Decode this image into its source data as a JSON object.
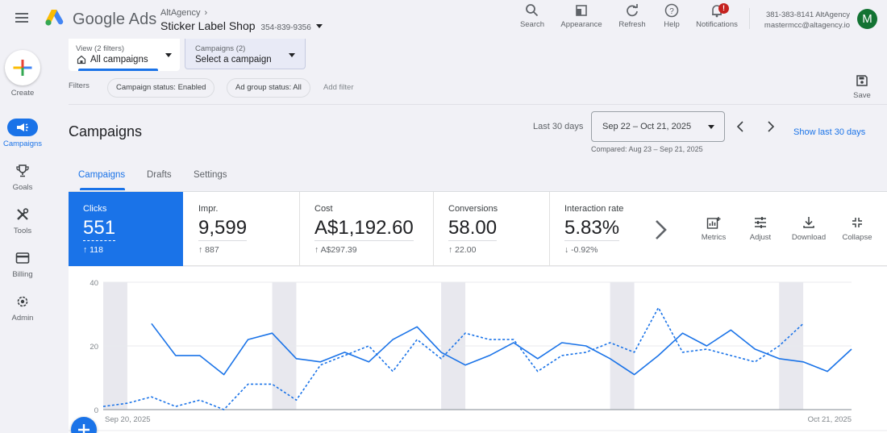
{
  "header": {
    "brand": "Google Ads",
    "account_parent": "AltAgency",
    "account_name": "Sticker Label Shop",
    "account_id": "354-839-9356",
    "tools": [
      {
        "label": "Search",
        "icon": "search-icon"
      },
      {
        "label": "Appearance",
        "icon": "appearance-icon"
      },
      {
        "label": "Refresh",
        "icon": "refresh-icon"
      },
      {
        "label": "Help",
        "icon": "help-icon"
      },
      {
        "label": "Notifications",
        "icon": "bell-icon",
        "badge": "!"
      }
    ],
    "user": {
      "line1": "381-383-8141 AltAgency",
      "line2": "mastermcc@altagency.io",
      "avatar_letter": "M",
      "avatar_color": "#137333"
    }
  },
  "sidebar": {
    "create_label": "Create",
    "items": [
      {
        "label": "Campaigns",
        "icon": "megaphone-icon",
        "active": true
      },
      {
        "label": "Goals",
        "icon": "trophy-icon"
      },
      {
        "label": "Tools",
        "icon": "tools-icon"
      },
      {
        "label": "Billing",
        "icon": "card-icon"
      },
      {
        "label": "Admin",
        "icon": "gear-icon"
      }
    ]
  },
  "filters": {
    "view_label": "View (2 filters)",
    "view_value": "All campaigns",
    "campaigns_label": "Campaigns (2)",
    "campaigns_value": "Select a campaign",
    "filters_label": "Filters",
    "chips": [
      "Campaign status: Enabled",
      "Ad group status: All"
    ],
    "add_filter": "Add filter",
    "save_label": "Save"
  },
  "page": {
    "title": "Campaigns",
    "range_label": "Last 30 days",
    "date_range": "Sep 22 – Oct 21, 2025",
    "compared": "Compared: Aug 23 – Sep 21, 2025",
    "show_last": "Show last 30 days",
    "tabs": [
      "Campaigns",
      "Drafts",
      "Settings"
    ],
    "active_tab": 0
  },
  "scorecards": [
    {
      "name": "Clicks",
      "value": "551",
      "delta": "↑ 118",
      "selected": true
    },
    {
      "name": "Impr.",
      "value": "9,599",
      "delta": "↑ 887"
    },
    {
      "name": "Cost",
      "value": "A$1,192.60",
      "delta": "↑ A$297.39"
    },
    {
      "name": "Conversions",
      "value": "58.00",
      "delta": "↑ 22.00"
    },
    {
      "name": "Interaction rate",
      "value": "5.83%",
      "delta": "↓ -0.92%"
    }
  ],
  "card_actions": [
    {
      "label": "Metrics",
      "icon": "metrics-icon"
    },
    {
      "label": "Adjust",
      "icon": "adjust-icon"
    },
    {
      "label": "Download",
      "icon": "download-icon"
    },
    {
      "label": "Collapse",
      "icon": "collapse-icon"
    }
  ],
  "colors": {
    "accent": "#1a73e8",
    "weekend_band": "#e8e8ee"
  },
  "chart_data": {
    "type": "line",
    "title": "",
    "xlabel": "",
    "ylabel": "Clicks",
    "ylim": [
      0,
      40
    ],
    "y_ticks": [
      0,
      20,
      40
    ],
    "x_tick_labels": [
      "Sep 20, 2025",
      "Oct 21, 2025"
    ],
    "grid": true,
    "x_days": 32,
    "weekend_band_days": [
      0,
      7,
      14,
      21,
      28
    ],
    "series": [
      {
        "name": "Clicks (Sep 22 – Oct 21, 2025)",
        "style": "solid",
        "start_day": 2,
        "values": [
          27,
          17,
          17,
          11,
          22,
          24,
          16,
          15,
          18,
          15,
          22,
          26,
          18,
          14,
          17,
          21,
          16,
          21,
          20,
          16,
          11,
          17,
          24,
          20,
          25,
          19,
          16,
          15,
          12,
          19
        ]
      },
      {
        "name": "Clicks (Compared: Aug 23 – Sep 21, 2025)",
        "style": "dashed",
        "start_day": 0,
        "values": [
          1,
          2,
          4,
          1,
          3,
          0,
          8,
          8,
          3,
          14,
          17,
          20,
          12,
          22,
          16,
          24,
          22,
          22,
          12,
          17,
          18,
          21,
          18,
          32,
          18,
          19,
          17,
          15,
          20,
          27
        ]
      }
    ]
  }
}
